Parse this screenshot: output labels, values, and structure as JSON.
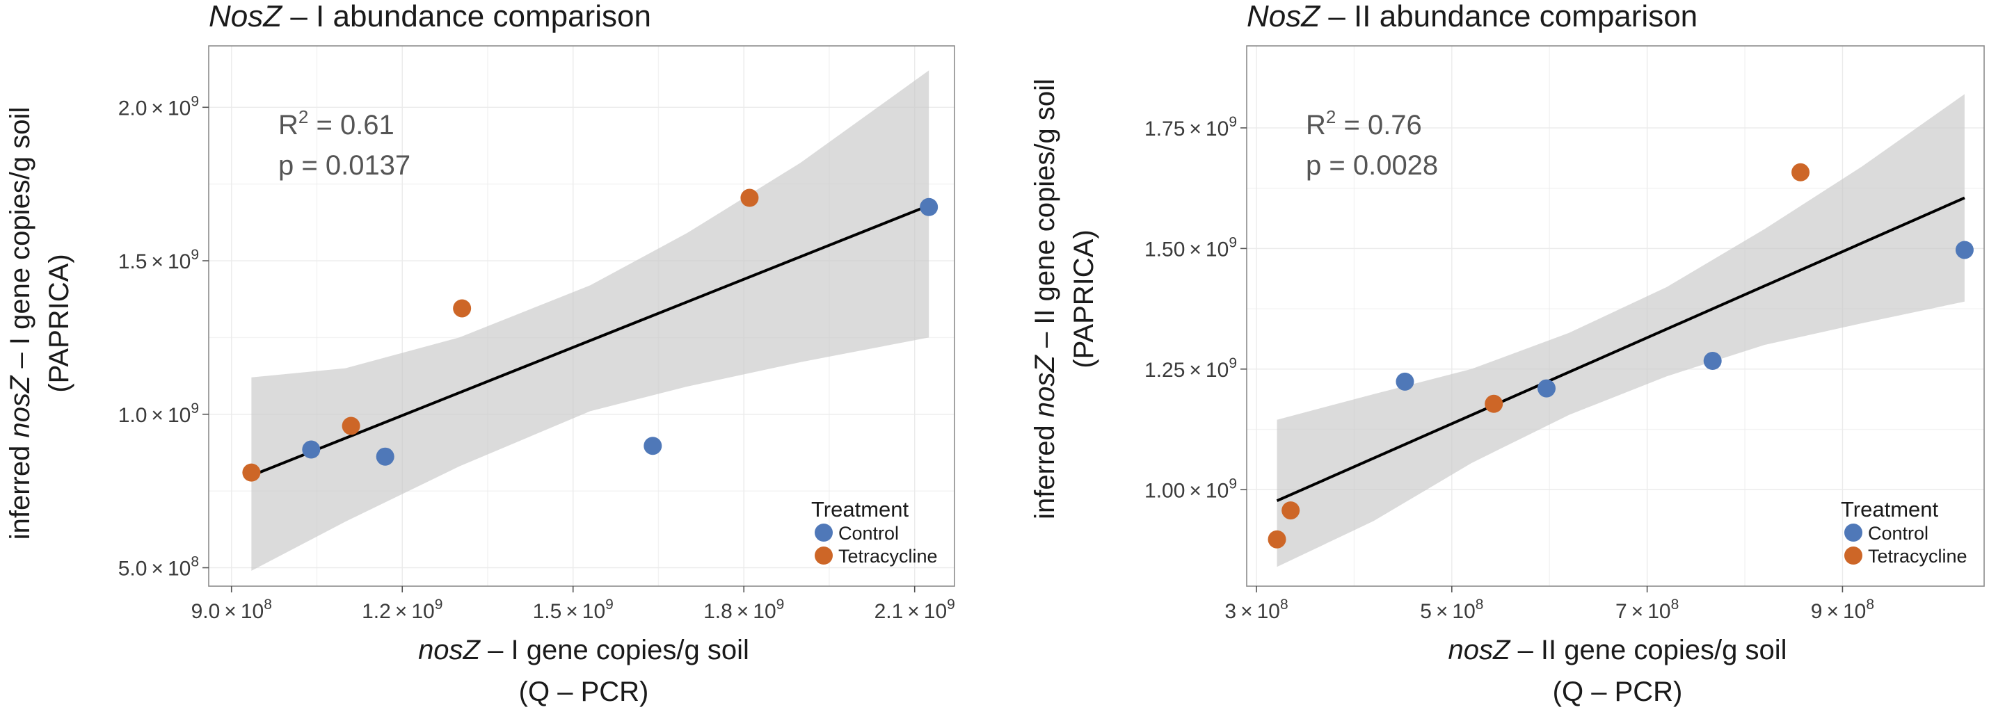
{
  "chart_data": [
    {
      "type": "scatter",
      "title_italic": "NosZ",
      "title_rest": " – I abundance comparison",
      "stat_r2_label": "R",
      "stat_r2_sup": "2",
      "stat_r2_value": " = 0.61",
      "stat_p": "p = 0.0137",
      "xlabel_italic": "nosZ",
      "xlabel_rest": " – I gene copies/g soil",
      "xlabel_line2": "(Q – PCR)",
      "ylabel_prefix": "inferred ",
      "ylabel_italic": "nosZ",
      "ylabel_rest": " – I gene copies/g soil",
      "ylabel_line2": "(PAPRICA)",
      "xlim": [
        860000000,
        2170000000
      ],
      "ylim": [
        440000000,
        2200000000
      ],
      "x_ticks": [
        {
          "value": 900000000,
          "mant": "9.0",
          "exp": "8"
        },
        {
          "value": 1200000000,
          "mant": "1.2",
          "exp": "9"
        },
        {
          "value": 1500000000,
          "mant": "1.5",
          "exp": "9"
        },
        {
          "value": 1800000000,
          "mant": "1.8",
          "exp": "9"
        },
        {
          "value": 2100000000,
          "mant": "2.1",
          "exp": "9"
        }
      ],
      "y_ticks": [
        {
          "value": 500000000,
          "mant": "5.0",
          "exp": "8"
        },
        {
          "value": 1000000000,
          "mant": "1.0",
          "exp": "9"
        },
        {
          "value": 1500000000,
          "mant": "1.5",
          "exp": "9"
        },
        {
          "value": 2000000000,
          "mant": "2.0",
          "exp": "9"
        }
      ],
      "series": [
        {
          "name": "Control",
          "color": "#4f78b8",
          "points": [
            {
              "x": 1040000000,
              "y": 885000000
            },
            {
              "x": 1170000000,
              "y": 862000000
            },
            {
              "x": 1640000000,
              "y": 897000000
            },
            {
              "x": 2125000000,
              "y": 1675000000
            }
          ]
        },
        {
          "name": "Tetracycline",
          "color": "#cd6627",
          "points": [
            {
              "x": 935000000,
              "y": 810000000
            },
            {
              "x": 1110000000,
              "y": 962000000
            },
            {
              "x": 1305000000,
              "y": 1345000000
            },
            {
              "x": 1810000000,
              "y": 1705000000
            }
          ]
        }
      ],
      "fit": {
        "x": [
          935000000,
          2125000000
        ],
        "y": [
          800000000,
          1680000000
        ]
      },
      "band": {
        "x": [
          935000000,
          1100000000,
          1300000000,
          1530000000,
          1700000000,
          1900000000,
          2125000000
        ],
        "upper": [
          1120000000,
          1150000000,
          1250000000,
          1420000000,
          1590000000,
          1820000000,
          2120000000
        ],
        "lower": [
          490000000,
          650000000,
          830000000,
          1010000000,
          1090000000,
          1170000000,
          1250000000
        ]
      },
      "legend": {
        "title": "Treatment",
        "items": [
          "Control",
          "Tetracycline"
        ],
        "position": "bottom-right"
      }
    },
    {
      "type": "scatter",
      "title_italic": "NosZ",
      "title_rest": " – II abundance comparison",
      "stat_r2_label": "R",
      "stat_r2_sup": "2",
      "stat_r2_value": " = 0.76",
      "stat_p": "p = 0.0028",
      "xlabel_italic": "nosZ",
      "xlabel_rest": " – II gene copies/g soil",
      "xlabel_line2": "(Q – PCR)",
      "ylabel_prefix": "inferred ",
      "ylabel_italic": "nosZ",
      "ylabel_rest": " – II gene copies/g soil",
      "ylabel_line2": "(PAPRICA)",
      "xlim": [
        290000000,
        1045000000
      ],
      "ylim": [
        800000000,
        1920000000
      ],
      "x_ticks": [
        {
          "value": 300000000,
          "mant": "3",
          "exp": "8"
        },
        {
          "value": 500000000,
          "mant": "5",
          "exp": "8"
        },
        {
          "value": 700000000,
          "mant": "7",
          "exp": "8"
        },
        {
          "value": 900000000,
          "mant": "9",
          "exp": "8"
        }
      ],
      "y_ticks": [
        {
          "value": 1000000000,
          "mant": "1.00",
          "exp": "9"
        },
        {
          "value": 1250000000,
          "mant": "1.25",
          "exp": "9"
        },
        {
          "value": 1500000000,
          "mant": "1.50",
          "exp": "9"
        },
        {
          "value": 1750000000,
          "mant": "1.75",
          "exp": "9"
        }
      ],
      "series": [
        {
          "name": "Control",
          "color": "#4f78b8",
          "points": [
            {
              "x": 452000000,
              "y": 1224000000
            },
            {
              "x": 597000000,
              "y": 1210000000
            },
            {
              "x": 767000000,
              "y": 1267000000
            },
            {
              "x": 1025000000,
              "y": 1497000000
            }
          ]
        },
        {
          "name": "Tetracycline",
          "color": "#cd6627",
          "points": [
            {
              "x": 321000000,
              "y": 897000000
            },
            {
              "x": 335000000,
              "y": 957000000
            },
            {
              "x": 543000000,
              "y": 1178000000
            },
            {
              "x": 857000000,
              "y": 1658000000
            }
          ]
        }
      ],
      "fit": {
        "x": [
          321000000,
          1025000000
        ],
        "y": [
          977000000,
          1605000000
        ]
      },
      "band": {
        "x": [
          321000000,
          420000000,
          520000000,
          620000000,
          720000000,
          820000000,
          920000000,
          1025000000
        ],
        "upper": [
          1145000000,
          1198000000,
          1250000000,
          1325000000,
          1420000000,
          1540000000,
          1670000000,
          1820000000
        ],
        "lower": [
          840000000,
          935000000,
          1055000000,
          1155000000,
          1235000000,
          1300000000,
          1345000000,
          1390000000
        ]
      },
      "legend": {
        "title": "Treatment",
        "items": [
          "Control",
          "Tetracycline"
        ],
        "position": "bottom-right"
      }
    }
  ]
}
